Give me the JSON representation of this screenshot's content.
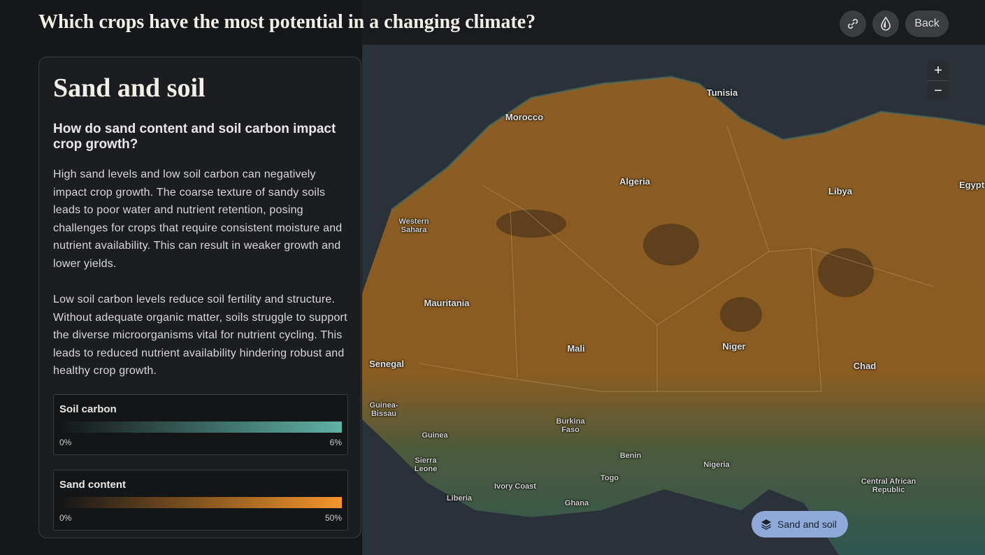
{
  "header": {
    "title": "Which crops have the most potential in a changing climate?",
    "back": "Back"
  },
  "panel": {
    "title": "Sand and soil",
    "question": "How do sand content and soil carbon impact crop growth?",
    "paragraphs": [
      "High sand levels and low soil carbon can negatively impact crop growth. The coarse texture of sandy soils leads to poor water and nutrient retention, posing challenges for crops that require consistent moisture and nutrient availability. This can result in weaker growth and lower yields.",
      "Low soil carbon levels reduce soil fertility and structure. Without adequate organic matter, soils struggle to support the diverse microorganisms vital for nutrient cycling. This leads to reduced nutrient availability hindering robust and healthy crop growth."
    ],
    "legends": [
      {
        "title": "Soil carbon",
        "min": "0%",
        "max": "6%"
      },
      {
        "title": "Sand content",
        "min": "0%",
        "max": "50%"
      }
    ]
  },
  "map": {
    "zoom_in": "+",
    "zoom_out": "−",
    "layer_button": "Sand and soil",
    "labels": [
      "Morocco",
      "Tunisia",
      "Algeria",
      "Libya",
      "Egypt",
      "Western Sahara",
      "Mauritania",
      "Mali",
      "Niger",
      "Chad",
      "Senegal",
      "Guinea-Bissau",
      "Guinea",
      "Burkina Faso",
      "Sierra Leone",
      "Benin",
      "Nigeria",
      "Togo",
      "Ivory Coast",
      "Liberia",
      "Ghana",
      "Central African Republic"
    ]
  }
}
